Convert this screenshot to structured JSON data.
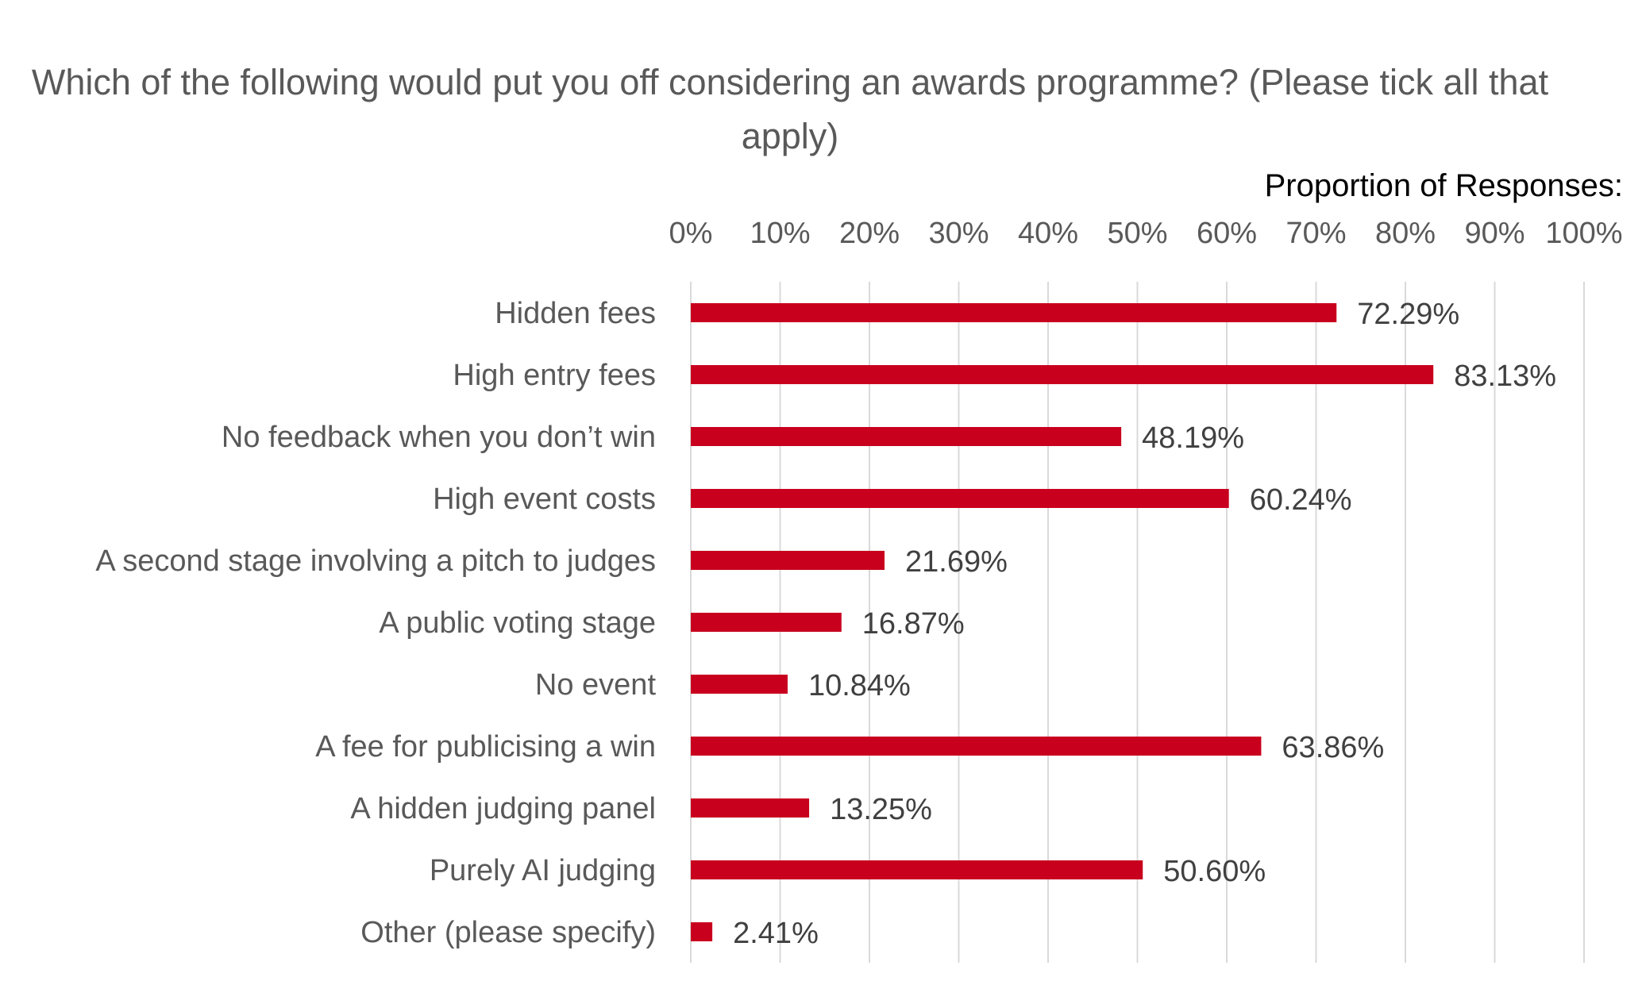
{
  "chart_data": {
    "type": "bar",
    "orientation": "horizontal",
    "title": "Which of the following would put you off considering an awards programme? (Please tick all that apply)",
    "xlabel": "Proportion of Responses:",
    "ylabel": "",
    "xlim": [
      0,
      100
    ],
    "x_ticks": [
      "0%",
      "10%",
      "20%",
      "30%",
      "40%",
      "50%",
      "60%",
      "70%",
      "80%",
      "90%",
      "100%"
    ],
    "grid": "vertical",
    "axis_position": "top",
    "bar_color": "#C8001E",
    "categories": [
      "Hidden fees",
      "High entry fees",
      "No feedback when you don’t win",
      "High event costs",
      "A second stage involving a pitch to judges",
      "A public voting stage",
      "No event",
      "A fee for publicising a win",
      "A hidden judging panel",
      "Purely AI judging",
      "Other (please specify)"
    ],
    "values": [
      72.29,
      83.13,
      48.19,
      60.24,
      21.69,
      16.87,
      10.84,
      63.86,
      13.25,
      50.6,
      2.41
    ],
    "data_labels": [
      "72.29%",
      "83.13%",
      "48.19%",
      "60.24%",
      "21.69%",
      "16.87%",
      "10.84%",
      "63.86%",
      "13.25%",
      "50.60%",
      "2.41%"
    ]
  }
}
